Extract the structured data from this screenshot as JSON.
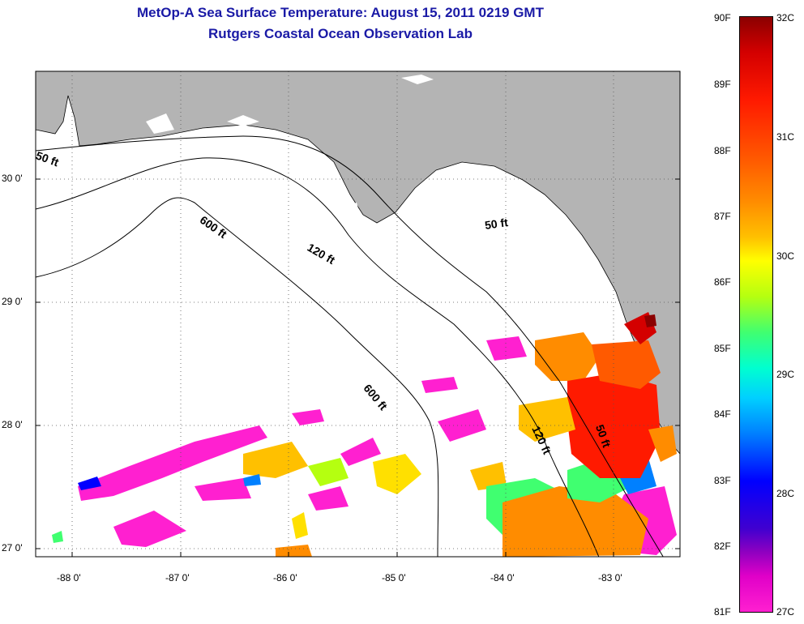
{
  "title": {
    "line1": "MetOp-A Sea Surface Temperature:  August 15, 2011 0219 GMT",
    "line2": "Rutgers Coastal Ocean Observation Lab"
  },
  "map": {
    "lat_labels": [
      "30 0'",
      "29 0'",
      "28 0'",
      "27 0'"
    ],
    "lon_labels": [
      "-88 0'",
      "-87 0'",
      "-86 0'",
      "-85 0'",
      "-84 0'",
      "-83 0'"
    ],
    "grid": true,
    "land_color": "#b4b4b4",
    "contour_labels": [
      "50 ft",
      "50 ft",
      "50 ft",
      "120 ft",
      "120 ft",
      "600 ft",
      "600 ft"
    ]
  },
  "colorbar": {
    "fahrenheit_labels": [
      "90F",
      "89F",
      "88F",
      "87F",
      "86F",
      "85F",
      "84F",
      "83F",
      "82F",
      "81F"
    ],
    "celsius_labels": [
      "32C",
      "31C",
      "30C",
      "29C",
      "28C",
      "27C"
    ]
  }
}
